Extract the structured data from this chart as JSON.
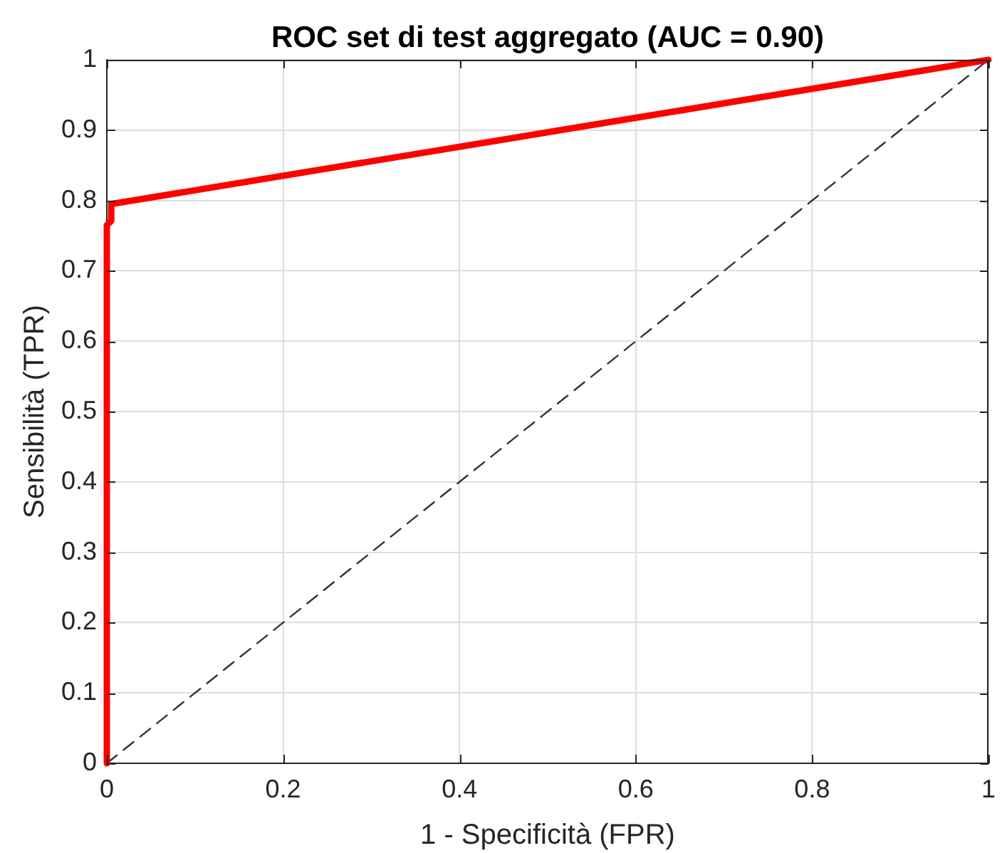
{
  "chart_data": {
    "type": "line",
    "title": "ROC set di test aggregato (AUC = 0.90)",
    "xlabel": "1 - Specificità (FPR)",
    "ylabel": "Sensibilità (TPR)",
    "xlim": [
      0,
      1
    ],
    "ylim": [
      0,
      1
    ],
    "xticks": [
      0,
      0.2,
      0.4,
      0.6,
      0.8,
      1
    ],
    "yticks": [
      0,
      0.1,
      0.2,
      0.3,
      0.4,
      0.5,
      0.6,
      0.7,
      0.8,
      0.9,
      1
    ],
    "grid": true,
    "legend": false,
    "marker": "none",
    "series": [
      {
        "color": "#ff0000",
        "x": [
          0,
          0,
          0.005,
          0.005,
          1
        ],
        "values": [
          0,
          0.765,
          0.771,
          0.795,
          1
        ]
      },
      {
        "color": "#333333",
        "line_style": "dashed",
        "x": [
          0,
          1
        ],
        "values": [
          0,
          1
        ]
      }
    ]
  }
}
